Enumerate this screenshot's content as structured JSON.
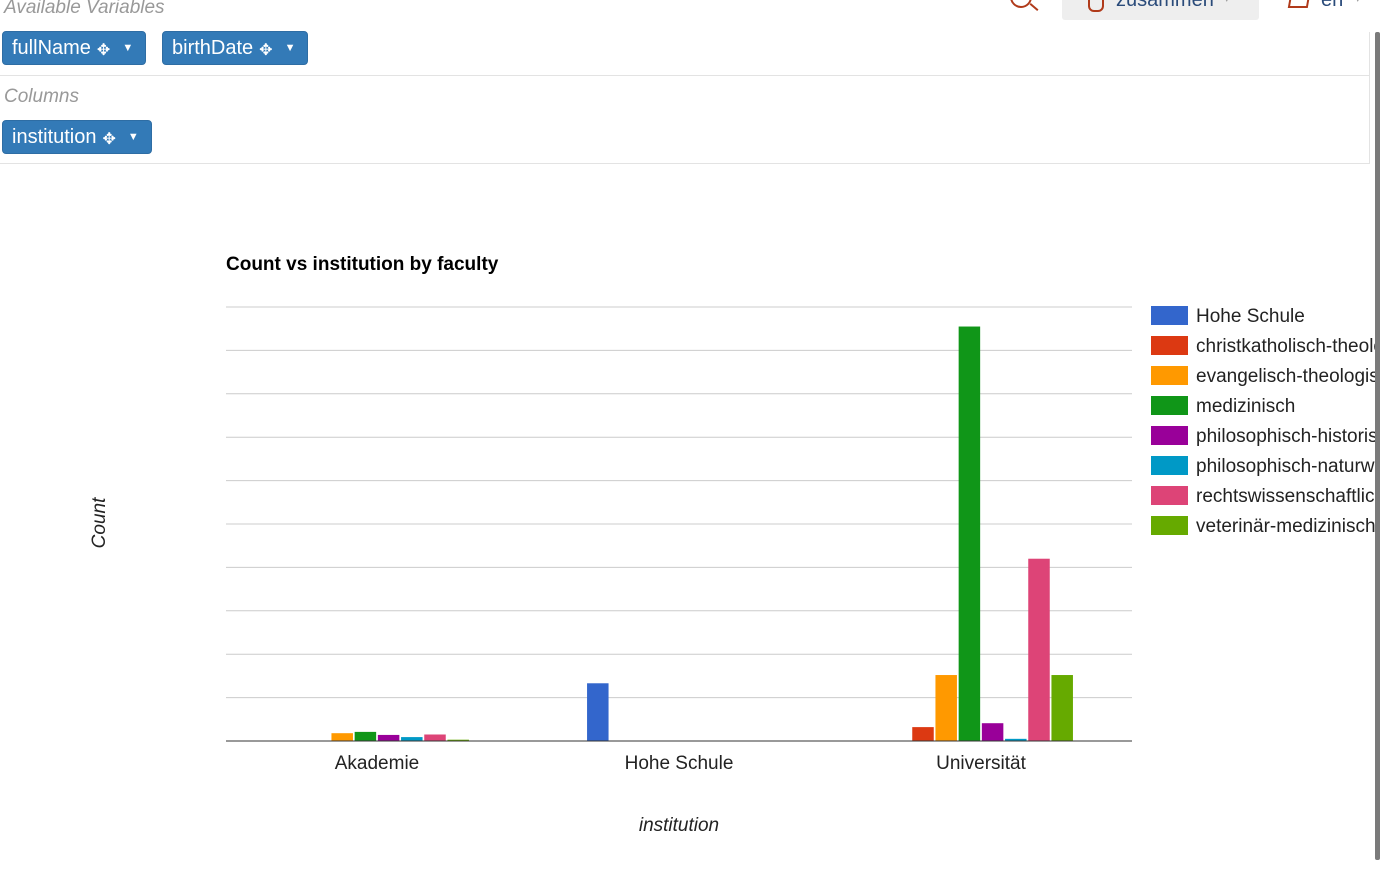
{
  "top": {
    "db_label": "zusammen",
    "lang_label": "en"
  },
  "available_variables": {
    "label": "Available Variables",
    "pills": [
      {
        "label": "fullName"
      },
      {
        "label": "birthDate"
      }
    ]
  },
  "columns": {
    "label": "Columns",
    "pills": [
      {
        "label": "institution"
      }
    ]
  },
  "chart_data": {
    "type": "bar",
    "title": "Count vs institution by faculty",
    "xlabel": "institution",
    "ylabel": "Count",
    "categories": [
      "Akademie",
      "Hohe Schule",
      "Universität"
    ],
    "ylim": [
      0,
      100
    ],
    "grid": true,
    "legend_position": "right",
    "series": [
      {
        "name": "Hohe Schule",
        "color": "#3366cc",
        "values": [
          0,
          13.3,
          0
        ]
      },
      {
        "name": "christkatholisch-theologisch",
        "color": "#dc3912",
        "values": [
          0,
          0,
          3.2
        ]
      },
      {
        "name": "evangelisch-theologisch",
        "color": "#ff9900",
        "values": [
          1.8,
          0,
          15.2
        ]
      },
      {
        "name": "medizinisch",
        "color": "#109618",
        "values": [
          2.1,
          0,
          95.5
        ]
      },
      {
        "name": "philosophisch-historisch",
        "color": "#990099",
        "values": [
          1.4,
          0,
          4.1
        ]
      },
      {
        "name": "philosophisch-naturwissenschaftlich",
        "color": "#0099c6",
        "values": [
          0.9,
          0,
          0.5
        ]
      },
      {
        "name": "rechtswissenschaftlich",
        "color": "#dd4477",
        "values": [
          1.5,
          0,
          42
        ]
      },
      {
        "name": "veterinär-medizinisch",
        "color": "#66aa00",
        "values": [
          0.3,
          0,
          15.2
        ]
      }
    ]
  }
}
